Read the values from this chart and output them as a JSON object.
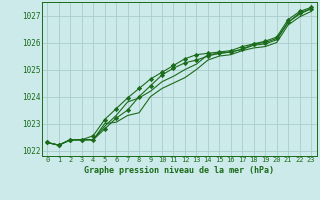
{
  "title": "Graphe pression niveau de la mer (hPa)",
  "bg_color": "#cdeaea",
  "grid_color": "#a8cccc",
  "line_color": "#1a6b1a",
  "xlim": [
    -0.5,
    23.5
  ],
  "ylim": [
    1021.8,
    1027.5
  ],
  "yticks": [
    1022,
    1023,
    1024,
    1025,
    1026,
    1027
  ],
  "xticks": [
    0,
    1,
    2,
    3,
    4,
    5,
    6,
    7,
    8,
    9,
    10,
    11,
    12,
    13,
    14,
    15,
    16,
    17,
    18,
    19,
    20,
    21,
    22,
    23
  ],
  "series_with_markers": [
    [
      1022.3,
      1022.2,
      1022.4,
      1022.4,
      1022.4,
      1022.8,
      1023.2,
      1023.5,
      1024.0,
      1024.4,
      1024.8,
      1025.05,
      1025.25,
      1025.35,
      1025.5,
      1025.6,
      1025.65,
      1025.75,
      1025.95,
      1026.0,
      1026.15,
      1026.75,
      1027.1,
      1027.25
    ],
    [
      1022.3,
      1022.2,
      1022.4,
      1022.4,
      1022.55,
      1023.15,
      1023.55,
      1023.95,
      1024.3,
      1024.65,
      1024.9,
      1025.15,
      1025.4,
      1025.55,
      1025.6,
      1025.65,
      1025.7,
      1025.85,
      1025.95,
      1026.05,
      1026.2,
      1026.85,
      1027.15,
      1027.3
    ]
  ],
  "series_plain": [
    [
      1022.3,
      1022.2,
      1022.4,
      1022.4,
      1022.4,
      1023.0,
      1023.05,
      1023.3,
      1023.4,
      1024.0,
      1024.3,
      1024.5,
      1024.7,
      1025.0,
      1025.35,
      1025.5,
      1025.55,
      1025.7,
      1025.8,
      1025.85,
      1026.0,
      1026.65,
      1026.95,
      1027.15
    ],
    [
      1022.3,
      1022.2,
      1022.4,
      1022.4,
      1022.4,
      1022.9,
      1023.3,
      1023.8,
      1023.95,
      1024.2,
      1024.55,
      1024.75,
      1025.0,
      1025.2,
      1025.55,
      1025.6,
      1025.65,
      1025.75,
      1025.9,
      1025.95,
      1026.1,
      1026.75,
      1027.05,
      1027.25
    ]
  ]
}
